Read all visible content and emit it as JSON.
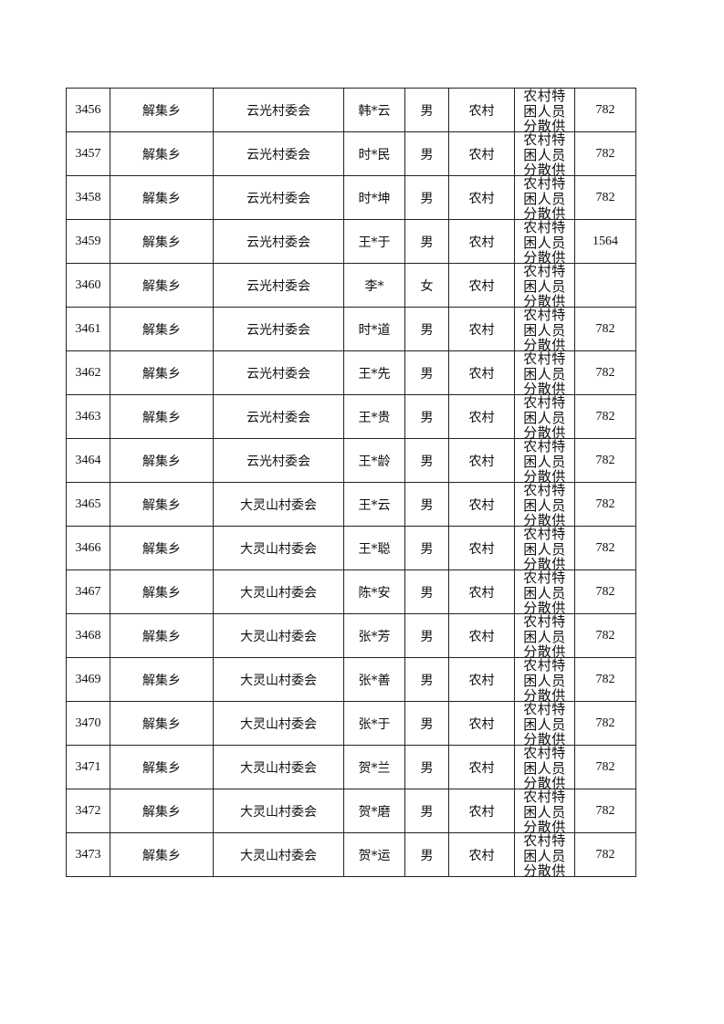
{
  "rows": [
    {
      "id": "3456",
      "town": "解集乡",
      "village": "云光村委会",
      "name": "韩*云",
      "gender": "男",
      "area": "农村",
      "category": "农村特困人员分散供养",
      "amount": "782"
    },
    {
      "id": "3457",
      "town": "解集乡",
      "village": "云光村委会",
      "name": "时*民",
      "gender": "男",
      "area": "农村",
      "category": "农村特困人员分散供养",
      "amount": "782"
    },
    {
      "id": "3458",
      "town": "解集乡",
      "village": "云光村委会",
      "name": "时*坤",
      "gender": "男",
      "area": "农村",
      "category": "农村特困人员分散供养",
      "amount": "782"
    },
    {
      "id": "3459",
      "town": "解集乡",
      "village": "云光村委会",
      "name": "王*于",
      "gender": "男",
      "area": "农村",
      "category": "农村特困人员分散供养",
      "amount": "1564"
    },
    {
      "id": "3460",
      "town": "解集乡",
      "village": "云光村委会",
      "name": "李*",
      "gender": "女",
      "area": "农村",
      "category": "农村特困人员分散供养",
      "amount": ""
    },
    {
      "id": "3461",
      "town": "解集乡",
      "village": "云光村委会",
      "name": "时*道",
      "gender": "男",
      "area": "农村",
      "category": "农村特困人员分散供养",
      "amount": "782"
    },
    {
      "id": "3462",
      "town": "解集乡",
      "village": "云光村委会",
      "name": "王*先",
      "gender": "男",
      "area": "农村",
      "category": "农村特困人员分散供养",
      "amount": "782"
    },
    {
      "id": "3463",
      "town": "解集乡",
      "village": "云光村委会",
      "name": "王*贵",
      "gender": "男",
      "area": "农村",
      "category": "农村特困人员分散供养",
      "amount": "782"
    },
    {
      "id": "3464",
      "town": "解集乡",
      "village": "云光村委会",
      "name": "王*龄",
      "gender": "男",
      "area": "农村",
      "category": "农村特困人员分散供养",
      "amount": "782"
    },
    {
      "id": "3465",
      "town": "解集乡",
      "village": "大灵山村委会",
      "name": "王*云",
      "gender": "男",
      "area": "农村",
      "category": "农村特困人员分散供养",
      "amount": "782"
    },
    {
      "id": "3466",
      "town": "解集乡",
      "village": "大灵山村委会",
      "name": "王*聪",
      "gender": "男",
      "area": "农村",
      "category": "农村特困人员分散供养",
      "amount": "782"
    },
    {
      "id": "3467",
      "town": "解集乡",
      "village": "大灵山村委会",
      "name": "陈*安",
      "gender": "男",
      "area": "农村",
      "category": "农村特困人员分散供养",
      "amount": "782"
    },
    {
      "id": "3468",
      "town": "解集乡",
      "village": "大灵山村委会",
      "name": "张*芳",
      "gender": "男",
      "area": "农村",
      "category": "农村特困人员分散供养",
      "amount": "782"
    },
    {
      "id": "3469",
      "town": "解集乡",
      "village": "大灵山村委会",
      "name": "张*善",
      "gender": "男",
      "area": "农村",
      "category": "农村特困人员分散供养",
      "amount": "782"
    },
    {
      "id": "3470",
      "town": "解集乡",
      "village": "大灵山村委会",
      "name": "张*于",
      "gender": "男",
      "area": "农村",
      "category": "农村特困人员分散供养",
      "amount": "782"
    },
    {
      "id": "3471",
      "town": "解集乡",
      "village": "大灵山村委会",
      "name": "贺*兰",
      "gender": "男",
      "area": "农村",
      "category": "农村特困人员分散供养",
      "amount": "782"
    },
    {
      "id": "3472",
      "town": "解集乡",
      "village": "大灵山村委会",
      "name": "贺*磨",
      "gender": "男",
      "area": "农村",
      "category": "农村特困人员分散供养",
      "amount": "782"
    },
    {
      "id": "3473",
      "town": "解集乡",
      "village": "大灵山村委会",
      "name": "贺*运",
      "gender": "男",
      "area": "农村",
      "category": "农村特困人员分散供养",
      "amount": "782"
    }
  ]
}
